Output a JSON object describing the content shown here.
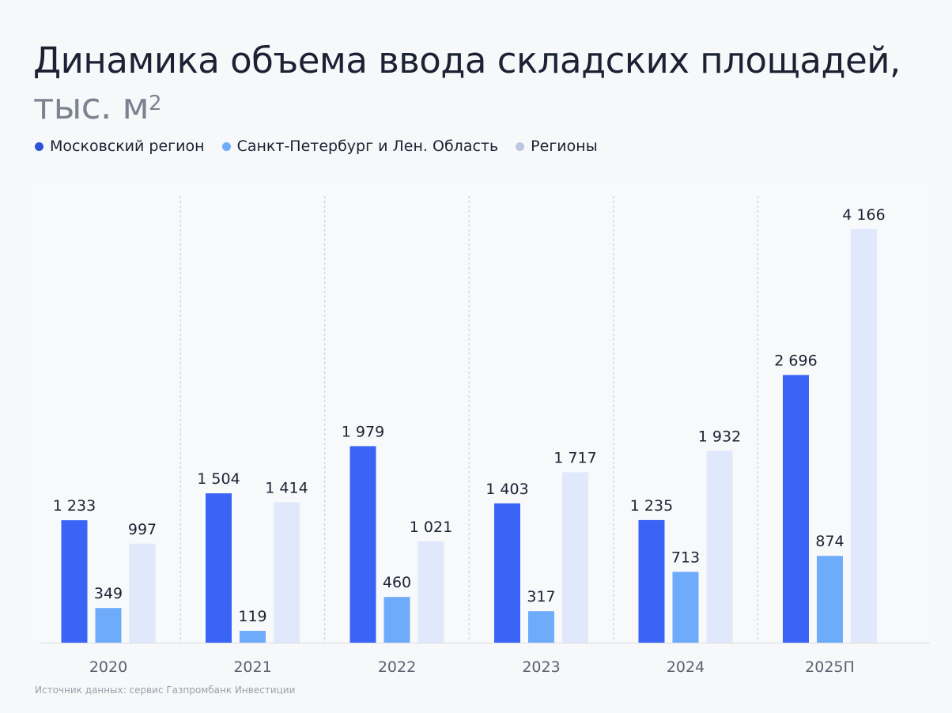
{
  "title": {
    "main": "Динамика объема ввода складских площадей,",
    "unit": "тыс. м",
    "unit_sup": "2"
  },
  "source": "Источник данных: сервис Газпромбанк Инвестиции",
  "chart_data": {
    "type": "bar",
    "title": "Динамика объема ввода складских площадей, тыс. м²",
    "xlabel": "",
    "ylabel": "",
    "categories": [
      "2020",
      "2021",
      "2022",
      "2023",
      "2024",
      "2025П"
    ],
    "series": [
      {
        "name": "Московский регион",
        "color": "#3a64f5",
        "values": [
          1233,
          1504,
          1979,
          1403,
          1235,
          2696
        ],
        "labels": [
          "1 233",
          "1 504",
          "1 979",
          "1 403",
          "1 235",
          "2 696"
        ]
      },
      {
        "name": "Санкт-Петербург и Лен. Область",
        "color": "#6eacfb",
        "values": [
          349,
          119,
          460,
          317,
          713,
          874
        ],
        "labels": [
          "349",
          "119",
          "460",
          "317",
          "713",
          "874"
        ]
      },
      {
        "name": "Регионы",
        "color": "#e0e8fb",
        "legend_color": "#bcc7e3",
        "values": [
          997,
          1414,
          1021,
          1717,
          1932,
          4166
        ],
        "labels": [
          "997",
          "1 414",
          "1 021",
          "1 717",
          "1 932",
          "4 166"
        ]
      }
    ],
    "ylim": [
      0,
      4500
    ],
    "grid": false,
    "legend": "top-left"
  }
}
